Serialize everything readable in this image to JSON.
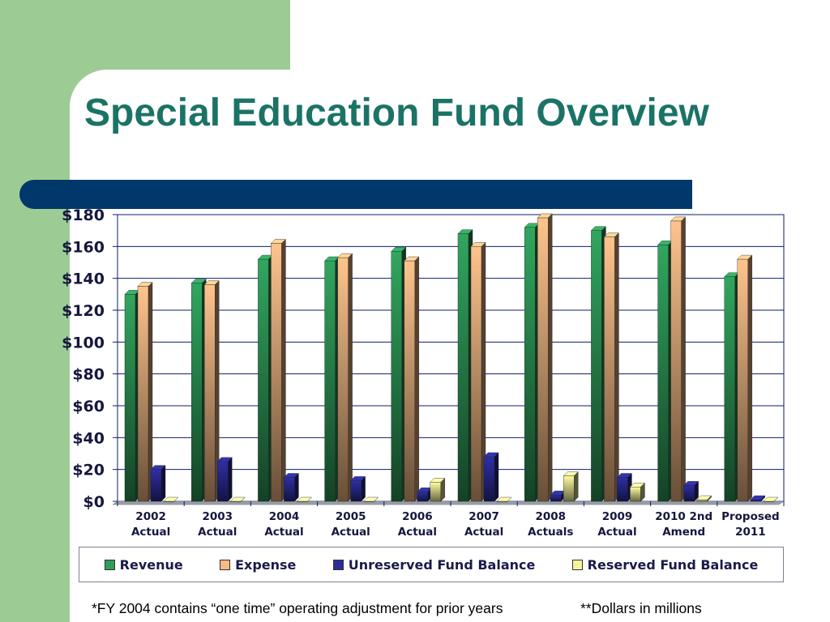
{
  "slide": {
    "title": "Special Education Fund Overview",
    "footnote_1": "*FY 2004 contains “one time” operating adjustment for prior years",
    "footnote_2": "**Dollars in millions"
  },
  "colors": {
    "background_green": "#9ccc94",
    "title": "#1b7366",
    "bar_accent": "#00386b",
    "grid": "#0b1f66"
  },
  "chart_data": {
    "type": "bar",
    "title": "",
    "xlabel": "",
    "ylabel": "",
    "ylim": [
      0,
      180
    ],
    "ytick_step": 20,
    "ytick_labels": [
      "$0",
      "$20",
      "$40",
      "$60",
      "$80",
      "$100",
      "$120",
      "$140",
      "$160",
      "$180"
    ],
    "grid": true,
    "legend_position": "bottom",
    "categories": [
      [
        "2002",
        "Actual"
      ],
      [
        "2003",
        "Actual"
      ],
      [
        "2004",
        "Actual"
      ],
      [
        "2005",
        "Actual"
      ],
      [
        "2006",
        "Actual"
      ],
      [
        "2007",
        "Actual"
      ],
      [
        "2008",
        "Actuals"
      ],
      [
        "2009",
        "Actual"
      ],
      [
        "2010 2nd",
        "Amend"
      ],
      [
        "Proposed",
        "2011"
      ]
    ],
    "series": [
      {
        "name": "Revenue",
        "color": "#2f9e5a",
        "values": [
          130,
          137,
          152,
          151,
          157,
          168,
          172,
          170,
          161,
          141
        ]
      },
      {
        "name": "Expense",
        "color": "#f6bb86",
        "values": [
          135,
          136,
          162,
          153,
          151,
          160,
          178,
          166,
          176,
          152
        ]
      },
      {
        "name": "Unreserved Fund Balance",
        "color": "#2c2d9a",
        "values": [
          20,
          25,
          15,
          13,
          6,
          28,
          4,
          15,
          10,
          1
        ]
      },
      {
        "name": "Reserved Fund Balance",
        "color": "#f4f29a",
        "values": [
          0,
          0,
          0,
          0,
          12,
          0,
          16,
          9,
          1,
          0
        ]
      }
    ]
  }
}
